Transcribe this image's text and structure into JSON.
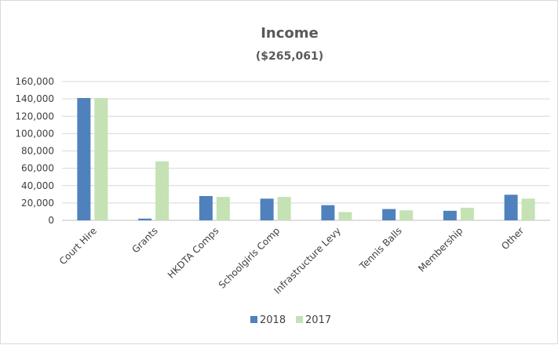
{
  "chart_data": {
    "type": "bar",
    "title": "Income",
    "subtitle": "($265,061)",
    "categories": [
      "Court Hire",
      "Grants",
      "HKDTA Comps",
      "Schoolgirls Comp",
      "Infrastructure Levy",
      "Tennis Balls",
      "Membership",
      "Other"
    ],
    "series": [
      {
        "name": "2018",
        "color": "#4f81bd",
        "values": [
          141000,
          2000,
          28000,
          25000,
          17500,
          13000,
          11000,
          29500
        ]
      },
      {
        "name": "2017",
        "color": "#c4e2b4",
        "values": [
          141000,
          68000,
          27000,
          27000,
          9500,
          11500,
          14500,
          25000
        ]
      }
    ],
    "ylim": [
      0,
      160000
    ],
    "yticks": [
      "0",
      "20,000",
      "40,000",
      "60,000",
      "80,000",
      "100,000",
      "120,000",
      "140,000",
      "160,000"
    ],
    "grid": true,
    "legend_position": "bottom",
    "xlabel": "",
    "ylabel": ""
  }
}
